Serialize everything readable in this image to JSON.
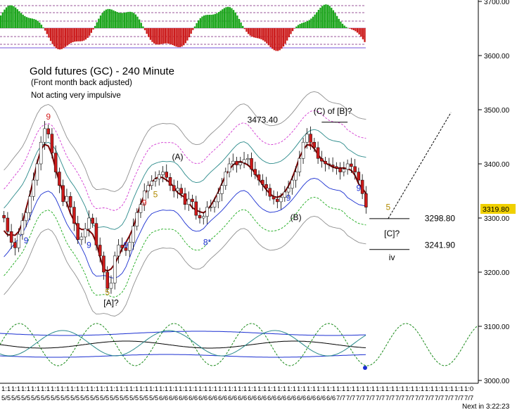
{
  "chart_data": {
    "type": "line",
    "title": "Gold futures (GC) - 240 Minute",
    "subtitle": "(Front month back adjusted)",
    "note": "Not acting very impulsive",
    "ylim": [
      3000,
      3700
    ],
    "yticks": [
      "3700.00",
      "3600.00",
      "3500.00",
      "3400.00",
      "3300.00",
      "3200.00",
      "3100.00",
      "3000.00"
    ],
    "last_price": "3319.80",
    "footer": "Next in 3:22:23",
    "x_tick_labels_visible": "1:1 1:1 1:1 ... 5/5 5/5 ... 6/6 ... 7/7 ... 1:0",
    "x_tick_count": 48,
    "price_series": {
      "name": "",
      "closes": [
        3300,
        3275,
        3255,
        3245,
        3270,
        3295,
        3310,
        3340,
        3370,
        3400,
        3440,
        3465,
        3455,
        3420,
        3385,
        3360,
        3330,
        3340,
        3320,
        3290,
        3260,
        3265,
        3280,
        3300,
        3290,
        3250,
        3230,
        3200,
        3170,
        3180,
        3230,
        3250,
        3245,
        3240,
        3255,
        3285,
        3310,
        3325,
        3350,
        3360,
        3368,
        3372,
        3380,
        3385,
        3375,
        3360,
        3350,
        3355,
        3345,
        3325,
        3335,
        3330,
        3305,
        3300,
        3303,
        3320,
        3320,
        3330,
        3345,
        3360,
        3385,
        3400,
        3405,
        3398,
        3402,
        3408,
        3410,
        3390,
        3380,
        3370,
        3362,
        3355,
        3340,
        3335,
        3330,
        3338,
        3348,
        3355,
        3370,
        3385,
        3410,
        3440,
        3455,
        3440,
        3430,
        3410,
        3405,
        3400,
        3398,
        3395,
        3392,
        3385,
        3390,
        3400,
        3395,
        3385,
        3370,
        3345,
        3320
      ]
    },
    "annotations": [
      {
        "text": "9",
        "color": "#d42020",
        "x": 12,
        "y": 3482
      },
      {
        "text": "9",
        "color": "#1a2fd1",
        "x": 6,
        "y": 3253
      },
      {
        "text": "9",
        "color": "#1a2fd1",
        "x": 23,
        "y": 3245
      },
      {
        "text": "5",
        "color": "#b08a00",
        "x": 28,
        "y": 3158
      },
      {
        "text": "[A]?",
        "color": "#000000",
        "x": 29,
        "y": 3138
      },
      {
        "text": "9",
        "color": "#1a2fd1",
        "x": 33,
        "y": 3245
      },
      {
        "text": "9",
        "color": "#d42020",
        "x": 38,
        "y": 3323
      },
      {
        "text": "5",
        "color": "#b08a00",
        "x": 41,
        "y": 3338
      },
      {
        "text": "(A)",
        "color": "#000000",
        "x": 47,
        "y": 3408
      },
      {
        "text": "8*",
        "color": "#1a2fd1",
        "x": 55,
        "y": 3250
      },
      {
        "text": "3473.40",
        "color": "#000000",
        "x": 70,
        "y": 3476
      },
      {
        "text": "9",
        "color": "#1a2fd1",
        "x": 77,
        "y": 3332
      },
      {
        "text": "(B)",
        "color": "#000000",
        "x": 79,
        "y": 3296
      },
      {
        "text": "9",
        "color": "#d42020",
        "x": 83,
        "y": 3432
      },
      {
        "text": "(C) of [B]?",
        "color": "#000000",
        "x": 89,
        "y": 3492
      },
      {
        "text": "9",
        "color": "#1a2fd1",
        "x": 96,
        "y": 3350
      },
      {
        "text": "5",
        "color": "#b08a00",
        "x": 104,
        "y": 3315
      },
      {
        "text": "3298.80",
        "color": "#000000",
        "x": 118,
        "y": 3294
      },
      {
        "text": "[C]?",
        "color": "#000000",
        "x": 105,
        "y": 3266
      },
      {
        "text": "3241.90",
        "color": "#000000",
        "x": 118,
        "y": 3245
      },
      {
        "text": "iv",
        "color": "#000000",
        "x": 105,
        "y": 3222
      }
    ],
    "projection": {
      "from_price": 3299,
      "to_price": 3495
    },
    "colors": {
      "up_candle": "#ffffff",
      "down_candle": "#cc1a1a",
      "ma_fast": "#7a0000",
      "band_blue": "#1a2fd1",
      "band_teal": "#2a8a8a",
      "band_magenta": "#d23ad2",
      "band_green": "#1aaa1a",
      "band_gray": "#909090",
      "hist_up": "#1aa51a",
      "hist_down": "#cc1a1a",
      "last_price_bg": "#f0d000",
      "cycle": "#1a8a1a"
    }
  }
}
